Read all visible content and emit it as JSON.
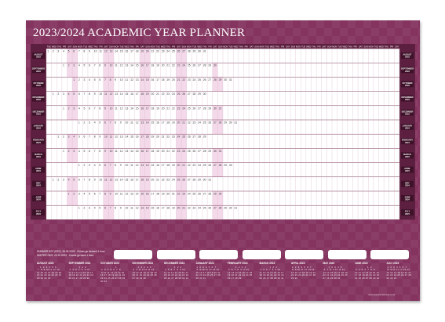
{
  "title": "2023/2024 ACADEMIC YEAR PLANNER",
  "colors": {
    "background": "#84345f",
    "band_dark": "#5c1f3f",
    "weekend": "#f4d9ea",
    "grid": "#c9a8ba"
  },
  "day_headers": [
    "TUE",
    "WED",
    "THU",
    "FRI",
    "SAT",
    "SUN",
    "MON",
    "TUE",
    "WED",
    "THU",
    "FRI",
    "SAT",
    "SUN",
    "MON",
    "TUE",
    "WED",
    "THU",
    "FRI",
    "SAT",
    "SUN",
    "MON",
    "TUE",
    "WED",
    "THU",
    "FRI",
    "SAT",
    "SUN",
    "MON",
    "TUE",
    "WED",
    "THU",
    "FRI",
    "SAT",
    "SUN",
    "MON",
    "TUE",
    "WED",
    "THU",
    "FRI",
    "SAT",
    "SUN",
    "MON",
    "TUE",
    "WED",
    "THU",
    "FRI",
    "SAT",
    "SUN",
    "MON",
    "TUE",
    "WED",
    "THU",
    "FRI",
    "SAT",
    "SUN",
    "MON",
    "TUE",
    "WED",
    "THU",
    "FRI",
    "SAT",
    "SUN",
    "MON",
    "TUE",
    "WED",
    "THU",
    "FRI",
    "SAT"
  ],
  "months": [
    {
      "label": [
        "AUGUST",
        "2023"
      ],
      "offset": 0,
      "days": 31
    },
    {
      "label": [
        "SEPTEMBER",
        "2023"
      ],
      "offset": 3,
      "days": 30
    },
    {
      "label": [
        "OCTOBER",
        "2023"
      ],
      "offset": 5,
      "days": 31
    },
    {
      "label": [
        "NOVEMBER",
        "2023"
      ],
      "offset": 1,
      "days": 30
    },
    {
      "label": [
        "DECEMBER",
        "2023"
      ],
      "offset": 3,
      "days": 31
    },
    {
      "label": [
        "JANUARY",
        "2024"
      ],
      "offset": 6,
      "days": 31
    },
    {
      "label": [
        "FEBRUARY",
        "2024"
      ],
      "offset": 2,
      "days": 29
    },
    {
      "label": [
        "MARCH",
        "2024"
      ],
      "offset": 3,
      "days": 31
    },
    {
      "label": [
        "APRIL",
        "2024"
      ],
      "offset": 6,
      "days": 30
    },
    {
      "label": [
        "MAY",
        "2024"
      ],
      "offset": 1,
      "days": 31
    },
    {
      "label": [
        "JUNE",
        "2024"
      ],
      "offset": 4,
      "days": 30
    },
    {
      "label": [
        "JULY",
        "2024"
      ],
      "offset": 6,
      "days": 31
    }
  ],
  "key_dates": [
    "SUMMER DST (BST): 26.03.2023 · Clocks go forward 1 hour",
    "WINTER GMT: 29.10.2023 · Clocks go back 1 hour"
  ],
  "mini_calendars": [
    {
      "title": "AUGUST 2023",
      "offset": 1,
      "days": 31
    },
    {
      "title": "SEPTEMBER 2023",
      "offset": 4,
      "days": 30
    },
    {
      "title": "OCTOBER 2023",
      "offset": 6,
      "days": 31
    },
    {
      "title": "NOVEMBER 2023",
      "offset": 2,
      "days": 30
    },
    {
      "title": "DECEMBER 2023",
      "offset": 4,
      "days": 31
    },
    {
      "title": "JANUARY 2024",
      "offset": 0,
      "days": 31
    },
    {
      "title": "FEBRUARY 2024",
      "offset": 3,
      "days": 29
    },
    {
      "title": "MARCH 2024",
      "offset": 4,
      "days": 31
    },
    {
      "title": "APRIL 2024",
      "offset": 0,
      "days": 30
    },
    {
      "title": "MAY 2024",
      "offset": 2,
      "days": 31
    },
    {
      "title": "JUNE 2024",
      "offset": 5,
      "days": 30
    },
    {
      "title": "JULY 2024",
      "offset": 0,
      "days": 31
    }
  ],
  "footer": "www.example-planners.co.uk"
}
